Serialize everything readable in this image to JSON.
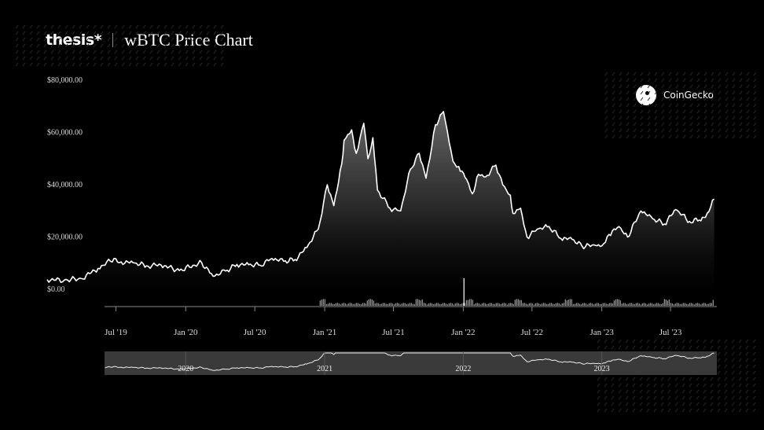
{
  "header": {
    "logo_text": "thesis*",
    "title": "wBTC Price Chart"
  },
  "source_badge": {
    "label": "CoinGecko",
    "icon": "gecko-icon"
  },
  "colors": {
    "background": "#000000",
    "line": "#ffffff",
    "text": "#ffffff",
    "muted": "#555555",
    "navigator_bg": "#3a3a3a"
  },
  "chart_data": {
    "type": "area",
    "title": "wBTC Price Chart",
    "y_tick_labels": [
      "$0.00",
      "$20,000.00",
      "$40,000.00",
      "$60,000.00",
      "$80,000.00"
    ],
    "y_ticks": [
      0,
      20000,
      40000,
      60000,
      80000
    ],
    "ylim": [
      0,
      80000
    ],
    "x_tick_labels": [
      "Jul '19",
      "Jan '20",
      "Jul '20",
      "Jan '21",
      "Jul '21",
      "Jan '22",
      "Jul '22",
      "Jan '23",
      "Jul '23"
    ],
    "x_ticks": [
      "2019-07-01",
      "2020-01-01",
      "2020-07-01",
      "2021-01-01",
      "2021-07-01",
      "2022-01-01",
      "2022-07-01",
      "2023-01-01",
      "2023-07-01"
    ],
    "xlim": [
      "2019-01-01",
      "2023-10-31"
    ],
    "navigator_labels": [
      "2020",
      "2021",
      "2022",
      "2023"
    ],
    "navigator_label_dates": [
      "2020-01-01",
      "2021-01-01",
      "2022-01-01",
      "2023-01-01"
    ],
    "series": [
      {
        "x": [
          "2019-01-01",
          "2019-02-15",
          "2019-04-01",
          "2019-05-15",
          "2019-06-26",
          "2019-07-15",
          "2019-08-15",
          "2019-09-20",
          "2019-10-28",
          "2019-12-15",
          "2020-02-12",
          "2020-03-13",
          "2020-04-15",
          "2020-05-15",
          "2020-06-15",
          "2020-07-15",
          "2020-08-15",
          "2020-09-15",
          "2020-10-15",
          "2020-11-15",
          "2020-12-15",
          "2021-01-08",
          "2021-01-25",
          "2021-02-15",
          "2021-02-21",
          "2021-03-13",
          "2021-03-25",
          "2021-04-14",
          "2021-04-25",
          "2021-05-08",
          "2021-05-20",
          "2021-06-22",
          "2021-07-20",
          "2021-08-15",
          "2021-09-07",
          "2021-09-25",
          "2021-10-20",
          "2021-11-10",
          "2021-12-05",
          "2021-12-20",
          "2022-01-10",
          "2022-01-25",
          "2022-02-10",
          "2022-03-01",
          "2022-03-28",
          "2022-04-15",
          "2022-05-05",
          "2022-05-12",
          "2022-06-01",
          "2022-06-18",
          "2022-07-15",
          "2022-08-15",
          "2022-09-15",
          "2022-10-15",
          "2022-11-10",
          "2022-12-15",
          "2023-01-01",
          "2023-01-20",
          "2023-02-15",
          "2023-03-10",
          "2023-04-14",
          "2023-05-15",
          "2023-06-15",
          "2023-07-15",
          "2023-08-20",
          "2023-09-15",
          "2023-10-01",
          "2023-10-24"
        ],
        "values": [
          3700,
          3500,
          4100,
          8000,
          11800,
          10500,
          10200,
          9000,
          9300,
          7200,
          10200,
          5000,
          7000,
          9500,
          9400,
          9200,
          11800,
          10700,
          11400,
          16000,
          23000,
          40000,
          32000,
          48000,
          57000,
          61000,
          52000,
          63500,
          50000,
          58000,
          38000,
          31000,
          30000,
          46000,
          52000,
          42500,
          63000,
          68000,
          49000,
          47000,
          42000,
          36500,
          44000,
          43000,
          47500,
          40000,
          36000,
          29000,
          31000,
          20000,
          23000,
          24000,
          19500,
          19100,
          16500,
          16800,
          16600,
          21000,
          24000,
          20000,
          30000,
          27000,
          25000,
          30500,
          26000,
          26500,
          27500,
          34500
        ]
      }
    ],
    "volume_spike_date": "2022-01-03"
  }
}
